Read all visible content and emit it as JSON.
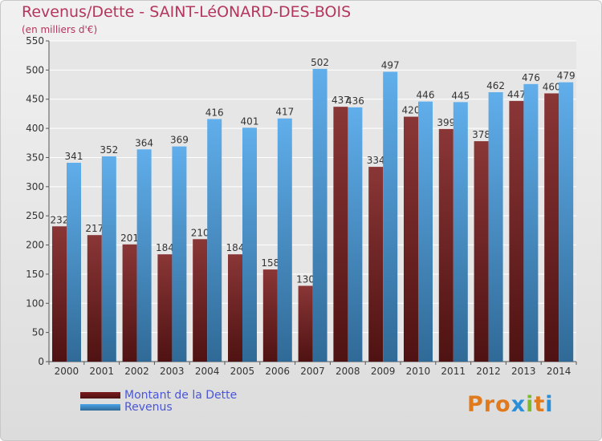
{
  "title": "Revenus/Dette - SAINT-LéONARD-DES-BOIS",
  "subtitle": "(en milliers d'€)",
  "logo": "Proxiti",
  "colors": {
    "dette": "#7a1b1b",
    "revenus": "#4aa3e8",
    "title": "#b4355d",
    "legend_text": "#4a56d8"
  },
  "legend": [
    {
      "label": "Montant de la Dette",
      "color": "#7a1b1b"
    },
    {
      "label": "Revenus",
      "color": "#4aa3e8"
    }
  ],
  "chart_data": {
    "type": "bar",
    "title": "Revenus/Dette - SAINT-LéONARD-DES-BOIS",
    "ylabel": "(en milliers d'€)",
    "categories": [
      "2000",
      "2001",
      "2002",
      "2003",
      "2004",
      "2005",
      "2006",
      "2007",
      "2008",
      "2009",
      "2010",
      "2011",
      "2012",
      "2013",
      "2014"
    ],
    "series": [
      {
        "name": "Montant de la Dette",
        "values": [
          232,
          217,
          201,
          184,
          210,
          184,
          158,
          130,
          437,
          334,
          420,
          399,
          378,
          447,
          460
        ]
      },
      {
        "name": "Revenus",
        "values": [
          341,
          352,
          364,
          369,
          416,
          401,
          417,
          502,
          436,
          497,
          446,
          445,
          462,
          476,
          479
        ]
      }
    ],
    "ylim": [
      0,
      550
    ],
    "yticks": [
      0,
      50,
      100,
      150,
      200,
      250,
      300,
      350,
      400,
      450,
      500,
      550
    ],
    "grid": true
  }
}
